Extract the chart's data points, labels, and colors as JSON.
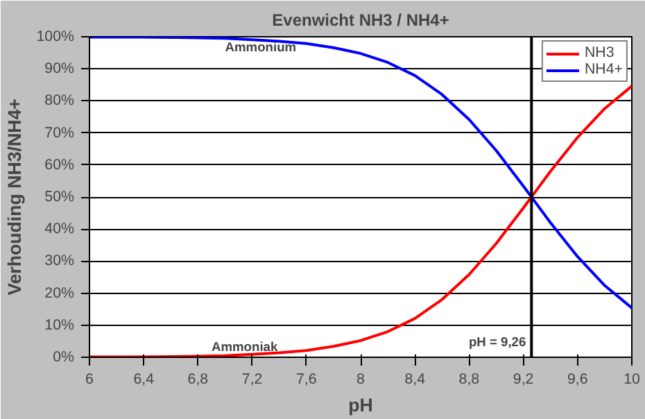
{
  "chart_data": {
    "type": "line",
    "title": "Evenwicht NH3 / NH4+",
    "xlabel": "pH",
    "ylabel": "Verhouding NH3/NH4+",
    "x": [
      6,
      6.2,
      6.4,
      6.6,
      6.8,
      7,
      7.2,
      7.4,
      7.6,
      7.8,
      8,
      8.2,
      8.4,
      8.6,
      8.8,
      9,
      9.2,
      9.4,
      9.6,
      9.8,
      10
    ],
    "series": [
      {
        "name": "NH3",
        "color": "#ff0000",
        "values": [
          0.1,
          0.1,
          0.1,
          0.2,
          0.3,
          0.5,
          0.9,
          1.4,
          2.1,
          3.4,
          5.2,
          8.0,
          12.1,
          18.0,
          25.8,
          35.5,
          46.6,
          58.0,
          68.6,
          77.6,
          84.6
        ]
      },
      {
        "name": "NH4+",
        "color": "#0000ff",
        "values": [
          99.9,
          99.9,
          99.9,
          99.8,
          99.7,
          99.5,
          99.1,
          98.6,
          97.9,
          96.6,
          94.8,
          92.0,
          87.9,
          82.0,
          74.2,
          64.5,
          53.4,
          42.0,
          31.4,
          22.4,
          15.4
        ]
      }
    ],
    "xlim": [
      6,
      10
    ],
    "xticks": [
      6,
      {
        "value": 6.4,
        "label": "6,4"
      },
      {
        "value": 6.8,
        "label": "6,8"
      },
      {
        "value": 7.2,
        "label": "7,2"
      },
      {
        "value": 7.6,
        "label": "7,6"
      },
      8,
      {
        "value": 8.4,
        "label": "8,4"
      },
      {
        "value": 8.8,
        "label": "8,8"
      },
      {
        "value": 9.2,
        "label": "9,2"
      },
      {
        "value": 9.6,
        "label": "9,6"
      },
      10
    ],
    "ylim": [
      0,
      100
    ],
    "yticks": [
      {
        "value": 0,
        "label": "0%"
      },
      {
        "value": 10,
        "label": "10%"
      },
      {
        "value": 20,
        "label": "20%"
      },
      {
        "value": 30,
        "label": "30%"
      },
      {
        "value": 40,
        "label": "40%"
      },
      {
        "value": 50,
        "label": "50%"
      },
      {
        "value": 60,
        "label": "60%"
      },
      {
        "value": 70,
        "label": "70%"
      },
      {
        "value": 80,
        "label": "80%"
      },
      {
        "value": 90,
        "label": "90%"
      },
      {
        "value": 100,
        "label": "100%"
      }
    ],
    "grid": "y",
    "legend": "top right",
    "marker": "none",
    "line_style": "solid",
    "ref_lines": [
      {
        "axis": "x",
        "value": 9.26,
        "label": "pH = 9,26",
        "color": "#000000"
      }
    ],
    "annotations": [
      {
        "text": "Ammonium",
        "x": 7.0,
        "y": 98
      },
      {
        "text": "Ammoniak",
        "x": 6.9,
        "y": 2
      }
    ]
  }
}
